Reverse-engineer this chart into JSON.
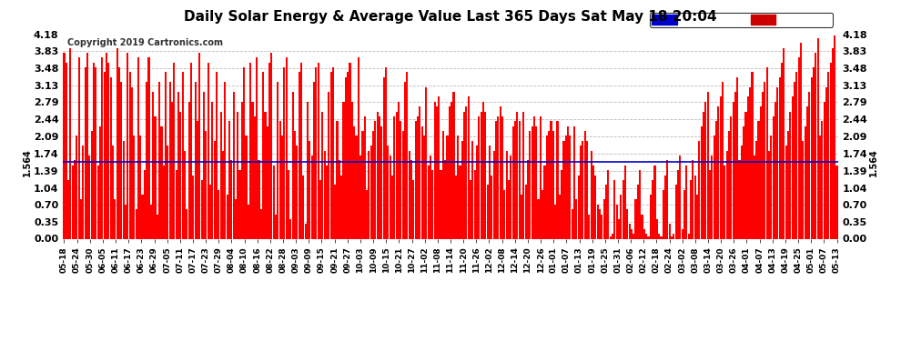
{
  "title": "Daily Solar Energy & Average Value Last 365 Days Sat May 18 20:04",
  "copyright": "Copyright 2019 Cartronics.com",
  "average_value": 1.564,
  "bar_color": "#ff0000",
  "average_line_color": "#0000cc",
  "background_color": "#ffffff",
  "grid_color": "#bbbbbb",
  "yticks": [
    0.0,
    0.35,
    0.7,
    1.04,
    1.39,
    1.74,
    2.09,
    2.44,
    2.79,
    3.13,
    3.48,
    3.83,
    4.18
  ],
  "ymax": 4.18,
  "legend_avg_bg": "#0000cc",
  "legend_daily_bg": "#cc0000",
  "x_tick_labels": [
    "05-18",
    "05-24",
    "05-30",
    "06-05",
    "06-11",
    "06-17",
    "06-23",
    "06-29",
    "07-05",
    "07-11",
    "07-17",
    "07-23",
    "07-29",
    "08-04",
    "08-10",
    "08-16",
    "08-22",
    "08-28",
    "09-03",
    "09-09",
    "09-15",
    "09-21",
    "09-27",
    "10-03",
    "10-09",
    "10-15",
    "10-21",
    "10-27",
    "11-02",
    "11-08",
    "11-14",
    "11-20",
    "11-26",
    "12-02",
    "12-08",
    "12-14",
    "12-20",
    "12-26",
    "01-01",
    "01-07",
    "01-13",
    "01-19",
    "01-25",
    "01-31",
    "02-06",
    "02-12",
    "02-18",
    "02-24",
    "03-02",
    "03-08",
    "03-14",
    "03-20",
    "03-26",
    "04-01",
    "04-07",
    "04-13",
    "04-19",
    "04-25",
    "05-01",
    "05-07",
    "05-13"
  ],
  "daily_values": [
    3.8,
    3.6,
    1.2,
    3.9,
    1.5,
    1.6,
    2.1,
    3.7,
    0.8,
    1.9,
    3.5,
    3.8,
    1.7,
    2.2,
    3.6,
    3.5,
    1.5,
    2.3,
    3.7,
    3.4,
    3.8,
    3.6,
    3.3,
    1.9,
    0.8,
    3.9,
    3.5,
    3.2,
    2.0,
    0.7,
    3.8,
    3.4,
    3.1,
    2.1,
    0.6,
    3.7,
    2.1,
    0.9,
    1.4,
    3.2,
    3.7,
    0.7,
    3.0,
    2.5,
    0.5,
    3.2,
    2.3,
    1.5,
    3.4,
    1.9,
    3.2,
    2.8,
    3.6,
    1.4,
    3.0,
    2.6,
    3.4,
    1.8,
    0.6,
    2.8,
    3.6,
    1.3,
    3.2,
    2.4,
    3.8,
    1.2,
    3.0,
    2.2,
    3.6,
    1.1,
    2.8,
    2.0,
    3.4,
    1.0,
    2.6,
    1.8,
    3.2,
    0.9,
    2.4,
    1.6,
    3.0,
    0.8,
    2.6,
    1.4,
    2.8,
    3.5,
    2.1,
    0.7,
    3.6,
    2.8,
    2.5,
    3.7,
    1.6,
    0.6,
    3.4,
    2.6,
    2.3,
    3.6,
    3.8,
    1.5,
    0.5,
    3.2,
    2.4,
    2.1,
    3.5,
    3.7,
    1.4,
    0.4,
    3.0,
    2.2,
    1.9,
    3.4,
    3.6,
    1.3,
    0.3,
    2.8,
    2.0,
    1.7,
    3.2,
    3.5,
    3.6,
    1.2,
    2.6,
    1.8,
    1.5,
    3.0,
    3.4,
    3.5,
    1.1,
    2.4,
    1.6,
    1.3,
    2.8,
    3.3,
    3.4,
    3.6,
    2.8,
    2.3,
    2.1,
    3.7,
    1.7,
    2.2,
    2.5,
    1.0,
    1.8,
    1.9,
    2.2,
    2.4,
    2.6,
    2.5,
    2.3,
    3.3,
    3.5,
    1.9,
    1.7,
    1.3,
    2.5,
    2.6,
    2.8,
    2.4,
    2.2,
    3.2,
    3.4,
    1.8,
    1.6,
    1.2,
    2.4,
    2.5,
    2.7,
    2.3,
    2.1,
    3.1,
    1.5,
    1.7,
    1.4,
    2.8,
    2.7,
    2.9,
    1.4,
    2.2,
    1.6,
    2.1,
    2.7,
    2.8,
    3.0,
    1.3,
    2.1,
    1.5,
    2.0,
    2.6,
    2.7,
    2.9,
    1.2,
    2.0,
    1.4,
    1.9,
    2.5,
    2.6,
    2.8,
    2.6,
    1.1,
    1.9,
    1.3,
    1.8,
    2.4,
    2.5,
    2.7,
    2.5,
    1.0,
    1.8,
    1.2,
    1.7,
    2.3,
    2.4,
    2.6,
    2.4,
    0.9,
    2.6,
    1.1,
    1.6,
    2.2,
    2.3,
    2.5,
    2.3,
    0.8,
    2.5,
    1.0,
    1.5,
    2.1,
    2.2,
    2.4,
    2.2,
    0.7,
    2.4,
    0.9,
    1.4,
    2.0,
    2.1,
    2.3,
    2.1,
    0.6,
    2.3,
    0.8,
    1.3,
    1.9,
    2.0,
    2.2,
    2.0,
    0.5,
    1.8,
    1.5,
    1.3,
    0.7,
    0.6,
    0.5,
    0.8,
    1.1,
    1.4,
    0.05,
    0.1,
    1.2,
    0.7,
    0.4,
    0.9,
    1.2,
    1.5,
    0.6,
    0.3,
    0.2,
    0.1,
    0.8,
    1.1,
    1.4,
    0.5,
    0.2,
    0.1,
    0.05,
    0.9,
    1.2,
    1.5,
    0.4,
    0.1,
    0.05,
    1.0,
    1.3,
    1.6,
    0.3,
    0.05,
    0.1,
    1.1,
    1.4,
    1.7,
    0.2,
    1.0,
    1.5,
    0.1,
    1.2,
    1.6,
    1.3,
    0.9,
    2.0,
    2.3,
    2.6,
    2.8,
    3.0,
    1.4,
    1.7,
    2.1,
    2.4,
    2.7,
    2.9,
    3.2,
    1.5,
    1.8,
    2.2,
    2.5,
    2.8,
    3.0,
    3.3,
    1.6,
    1.9,
    2.3,
    2.6,
    2.9,
    3.1,
    3.4,
    1.7,
    2.0,
    2.4,
    2.7,
    3.0,
    3.2,
    3.5,
    1.8,
    2.1,
    2.5,
    2.8,
    3.1,
    3.3,
    3.6,
    3.9,
    1.9,
    2.2,
    2.6,
    2.9,
    3.2,
    3.4,
    3.7,
    4.0,
    2.0,
    2.3,
    2.7,
    3.0,
    3.3,
    3.5,
    3.8,
    4.1,
    2.1,
    2.4,
    2.8,
    3.1,
    3.4,
    3.6,
    3.9,
    4.15,
    1.5
  ]
}
